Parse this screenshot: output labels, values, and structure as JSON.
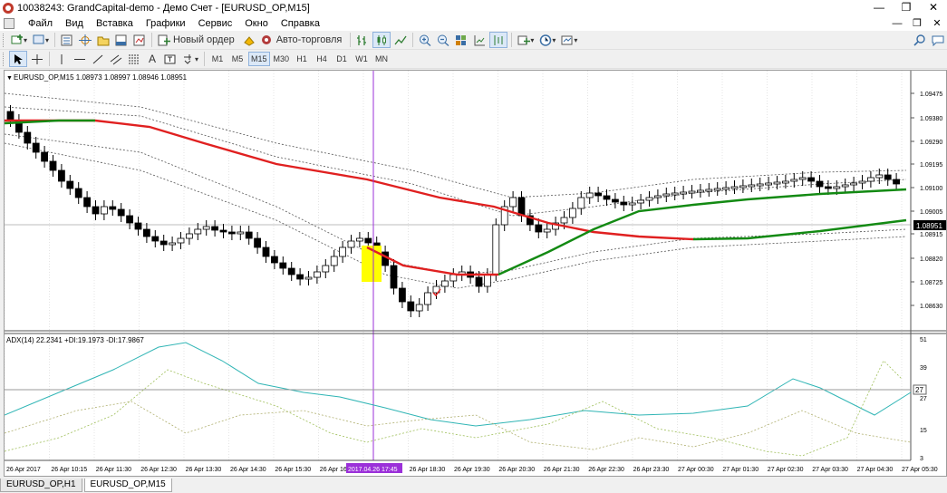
{
  "window": {
    "title": "10038243: GrandCapital-demo - Демо Счет - [EURUSD_OP,M15]"
  },
  "menu": {
    "items": [
      "Файл",
      "Вид",
      "Вставка",
      "Графики",
      "Сервис",
      "Окно",
      "Справка"
    ]
  },
  "toolbar": {
    "new_order_label": "Новый ордер",
    "autotrade_label": "Авто-торговля"
  },
  "timeframes": [
    "M1",
    "M5",
    "M15",
    "M30",
    "H1",
    "H4",
    "D1",
    "W1",
    "MN"
  ],
  "active_timeframe": "M15",
  "chart": {
    "header": "EURUSD_OP,M15  1.08973 1.08997 1.08946 1.08951",
    "price_labels": [
      "1.09475",
      "1.09380",
      "1.09290",
      "1.09195",
      "1.09100",
      "1.09005",
      "1.08915",
      "1.08820",
      "1.08725",
      "1.08630"
    ],
    "current_price": "1.08951",
    "time_labels": [
      "26 Apr 2017",
      "26 Apr 10:15",
      "26 Apr 11:30",
      "26 Apr 12:30",
      "26 Apr 13:30",
      "26 Apr 14:30",
      "26 Apr 15:30",
      "26 Apr 16:",
      "2017.04.26 17:45",
      "26 Apr 18:30",
      "26 Apr 19:30",
      "26 Apr 20:30",
      "26 Apr 21:30",
      "26 Apr 22:30",
      "26 Apr 23:30",
      "27 Apr 00:30",
      "27 Apr 01:30",
      "27 Apr 02:30",
      "27 Apr 03:30",
      "27 Apr 04:30",
      "27 Apr 05:30"
    ],
    "indicator_header": "ADX(14) 22.2341 +DI:19.1973 -DI:17.9867",
    "indicator_labels": [
      "51",
      "39",
      "27",
      "15",
      "3"
    ],
    "indicator_current": "27",
    "colors": {
      "bull": "#ffffff",
      "bear": "#000000",
      "ma_red": "#e02020",
      "ma_green": "#138a13",
      "cursor_line": "#9b30d9",
      "highlight": "#ffff00",
      "adx": "#30b5b5"
    }
  },
  "tabs": [
    "EURUSD_OP,H1",
    "EURUSD_OP,M15"
  ],
  "active_tab": "EURUSD_OP,M15"
}
